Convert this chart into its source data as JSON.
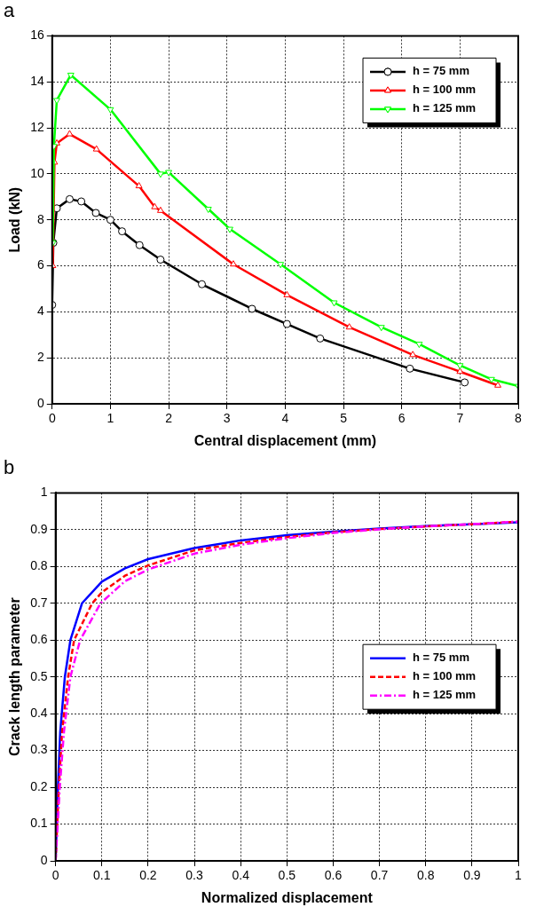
{
  "chart_data": [
    {
      "type": "line",
      "title": "a",
      "xlabel": "Central displacement (mm)",
      "ylabel": "Load (kN)",
      "xlim": [
        0,
        8
      ],
      "xticks": [
        0,
        1,
        2,
        3,
        4,
        5,
        6,
        7,
        8
      ],
      "ylim": [
        0,
        16
      ],
      "yticks": [
        0,
        2,
        4,
        6,
        8,
        10,
        12,
        14,
        16
      ],
      "grid": true,
      "legend": "top right",
      "line_style": "solid",
      "series": [
        {
          "name": "h = 75 mm",
          "color": "#000000",
          "marker": "circle",
          "x": [
            0,
            0.02,
            0.08,
            0.3,
            0.5,
            0.75,
            1,
            1.2,
            1.5,
            1.86,
            2.57,
            3.43,
            4.03,
            4.6,
            6.14,
            7.08
          ],
          "values": [
            4.3,
            7,
            8.5,
            8.9,
            8.8,
            8.3,
            8,
            7.5,
            6.9,
            6.27,
            5.2,
            4.13,
            3.47,
            2.84,
            1.53,
            0.93
          ]
        },
        {
          "name": "h = 100 mm",
          "color": "#ff0000",
          "marker": "triangle",
          "x": [
            0.01,
            0.04,
            0.08,
            0.3,
            0.76,
            1.49,
            1.76,
            1.86,
            3.11,
            4.03,
            5.1,
            6.19,
            7,
            7.65
          ],
          "values": [
            6,
            10.5,
            11.33,
            11.73,
            11.07,
            9.47,
            8.56,
            8.4,
            6.07,
            4.73,
            3.33,
            2.13,
            1.4,
            0.8
          ]
        },
        {
          "name": "h = 125 mm",
          "color": "#00ff00",
          "marker": "triangle-down",
          "x": [
            0.01,
            0.03,
            0.08,
            0.32,
            1,
            1.86,
            2,
            2.68,
            3.05,
            3.92,
            4.84,
            5.65,
            6.3,
            7,
            7.54,
            8
          ],
          "values": [
            7,
            11.2,
            13.2,
            14.3,
            12.8,
            10,
            10.07,
            8.47,
            7.6,
            6.07,
            4.4,
            3.33,
            2.6,
            1.67,
            1.07,
            0.77
          ]
        }
      ]
    },
    {
      "type": "line",
      "title": "b",
      "xlabel": "Normalized displacement",
      "ylabel": "Crack length parameter",
      "xlim": [
        0,
        1
      ],
      "xticks": [
        0,
        0.1,
        0.2,
        0.3,
        0.4,
        0.5,
        0.6,
        0.7,
        0.8,
        0.9,
        1
      ],
      "ylim": [
        0,
        1
      ],
      "yticks": [
        0,
        0.1,
        0.2,
        0.3,
        0.4,
        0.5,
        0.6,
        0.7,
        0.8,
        0.9,
        1
      ],
      "grid": true,
      "legend": "right",
      "marker": "none",
      "series": [
        {
          "name": "h = 75 mm",
          "color": "#0000ff",
          "line_style": "solid",
          "x": [
            0,
            0.005,
            0.01,
            0.02,
            0.032,
            0.057,
            0.1,
            0.15,
            0.2,
            0.3,
            0.4,
            0.5,
            0.6,
            0.7,
            0.8,
            0.9,
            1
          ],
          "values": [
            0,
            0.2,
            0.35,
            0.5,
            0.6,
            0.7,
            0.759,
            0.795,
            0.82,
            0.85,
            0.871,
            0.885,
            0.895,
            0.903,
            0.91,
            0.915,
            0.92
          ]
        },
        {
          "name": "h = 100 mm",
          "color": "#ff0000",
          "line_style": "dashed",
          "x": [
            0,
            0.007,
            0.014,
            0.027,
            0.04,
            0.079,
            0.1,
            0.15,
            0.2,
            0.3,
            0.4,
            0.5,
            0.6,
            0.7,
            0.8,
            0.9,
            1
          ],
          "values": [
            0,
            0.2,
            0.35,
            0.5,
            0.6,
            0.7,
            0.73,
            0.775,
            0.803,
            0.844,
            0.864,
            0.88,
            0.893,
            0.902,
            0.909,
            0.915,
            0.922
          ]
        },
        {
          "name": "h = 125 mm",
          "color": "#ff00ff",
          "line_style": "dotted",
          "x": [
            0,
            0.009,
            0.018,
            0.032,
            0.053,
            0.097,
            0.15,
            0.2,
            0.3,
            0.4,
            0.5,
            0.6,
            0.7,
            0.8,
            0.9,
            1
          ],
          "values": [
            0,
            0.2,
            0.35,
            0.5,
            0.6,
            0.7,
            0.76,
            0.792,
            0.835,
            0.859,
            0.877,
            0.891,
            0.901,
            0.909,
            0.915,
            0.922
          ]
        }
      ]
    }
  ]
}
